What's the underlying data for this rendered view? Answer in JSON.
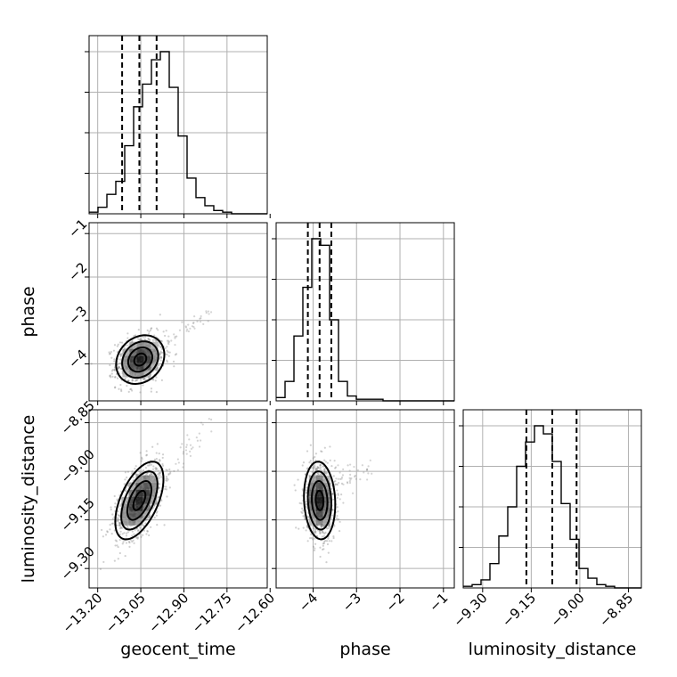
{
  "chart_data": {
    "type": "corner",
    "parameters": [
      "geocent_time",
      "phase",
      "luminosity_distance"
    ],
    "axis_labels": {
      "x": [
        "geocent_time",
        "phase",
        "luminosity_distance"
      ],
      "y": [
        "phase",
        "luminosity_distance"
      ]
    },
    "ranges": {
      "geocent_time": [
        -13.23,
        -12.61
      ],
      "phase": [
        -4.85,
        -0.75
      ],
      "luminosity_distance": [
        -9.36,
        -8.81
      ]
    },
    "ticks": {
      "geocent_time": {
        "values": [
          -13.2,
          -13.05,
          -12.9,
          -12.75,
          -12.6
        ],
        "labels": [
          "−13.20",
          "−13.05",
          "−12.90",
          "−12.75",
          "−12.60"
        ]
      },
      "phase": {
        "values": [
          -4,
          -3,
          -2,
          -1
        ],
        "labels": [
          "−4",
          "−3",
          "−2",
          "−1"
        ]
      },
      "luminosity_distance": {
        "values": [
          -9.3,
          -9.15,
          -9.0,
          -8.85
        ],
        "labels": [
          "−9.30",
          "−9.15",
          "−9.00",
          "−8.85"
        ]
      }
    },
    "quantiles": {
      "geocent_time": [
        -13.115,
        -13.055,
        -12.995
      ],
      "phase": [
        -4.12,
        -3.85,
        -3.58
      ],
      "luminosity_distance": [
        -9.165,
        -9.085,
        -9.01
      ]
    },
    "histograms": {
      "geocent_time": {
        "edges_start": -13.23,
        "bin_width": 0.031,
        "counts": [
          0.01,
          0.04,
          0.12,
          0.2,
          0.42,
          0.66,
          0.8,
          0.95,
          1.0,
          0.78,
          0.48,
          0.22,
          0.1,
          0.05,
          0.02,
          0.01,
          0,
          0,
          0,
          0
        ]
      },
      "phase": {
        "edges_start": -4.85,
        "bin_width": 0.205,
        "counts": [
          0.02,
          0.12,
          0.4,
          0.7,
          1.0,
          0.96,
          0.5,
          0.12,
          0.03,
          0.01,
          0.01,
          0.01,
          0,
          0,
          0,
          0,
          0,
          0,
          0,
          0
        ]
      },
      "luminosity_distance": {
        "edges_start": -9.36,
        "bin_width": 0.0275,
        "counts": [
          0.01,
          0.02,
          0.05,
          0.15,
          0.32,
          0.5,
          0.75,
          0.9,
          1.0,
          0.95,
          0.78,
          0.52,
          0.3,
          0.12,
          0.06,
          0.02,
          0.01,
          0,
          0,
          0
        ]
      }
    },
    "pairs": [
      {
        "x": "geocent_time",
        "y": "phase",
        "center": [
          -13.052,
          -3.9
        ],
        "sigma": [
          0.042,
          0.28
        ],
        "rho": 0.2
      },
      {
        "x": "geocent_time",
        "y": "luminosity_distance",
        "center": [
          -13.055,
          -9.09
        ],
        "sigma": [
          0.042,
          0.06
        ],
        "rho": 0.55
      },
      {
        "x": "phase",
        "y": "luminosity_distance",
        "center": [
          -3.85,
          -9.09
        ],
        "sigma": [
          0.18,
          0.06
        ],
        "rho": -0.1
      }
    ],
    "contour_levels_sigma": [
      0.5,
      1.0,
      1.5,
      2.0
    ],
    "grid": true
  }
}
